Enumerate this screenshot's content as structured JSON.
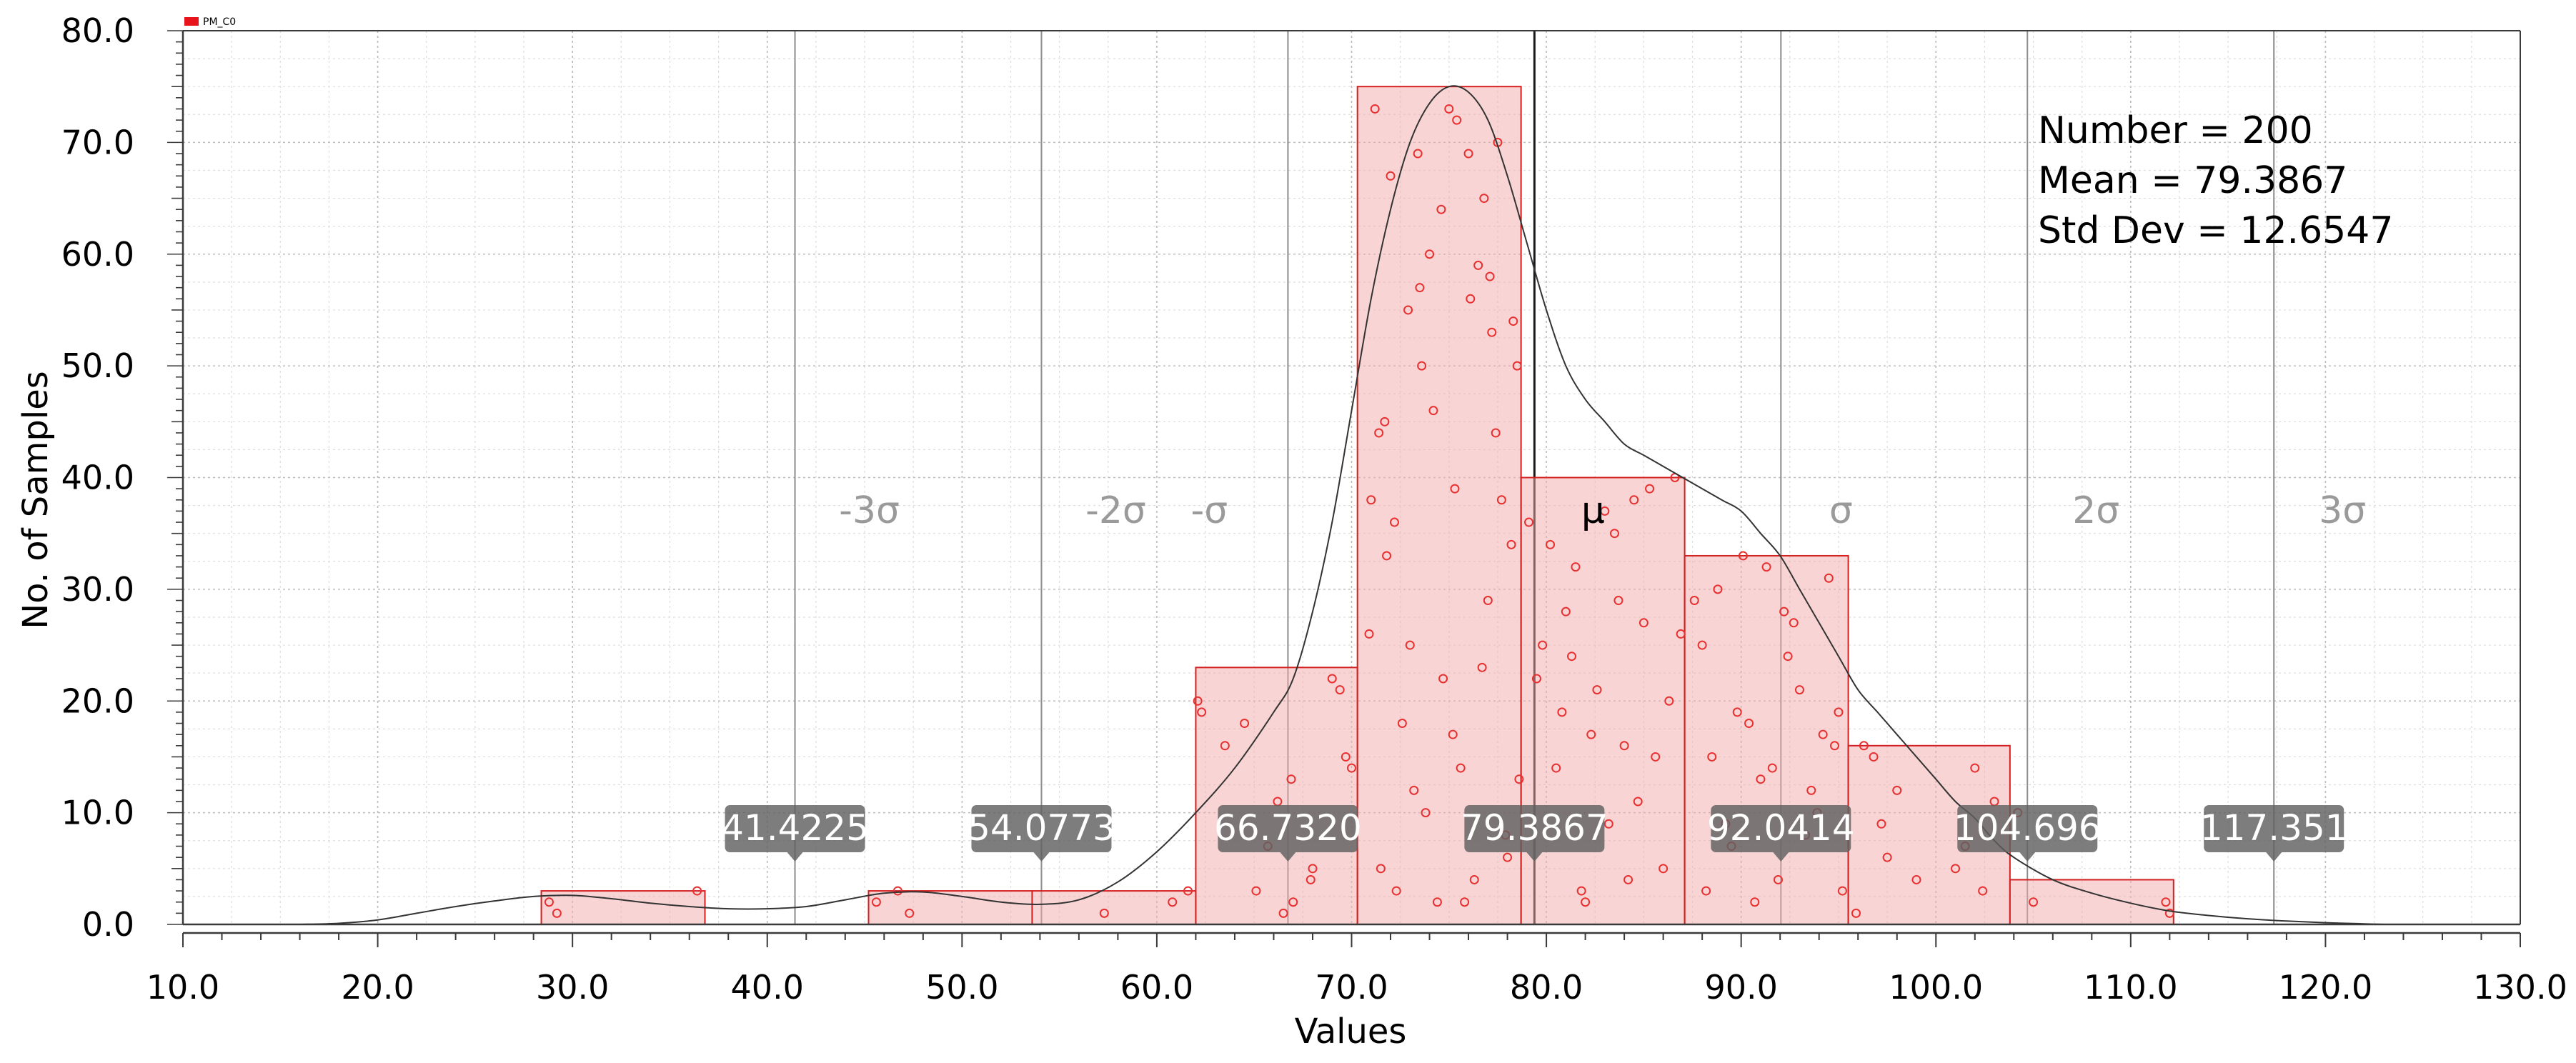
{
  "chart_data": {
    "type": "histogram",
    "legend": {
      "label": "PM_C0",
      "color": "#e8141b",
      "placement": "top-left"
    },
    "xlabel": "Values",
    "ylabel": "No. of Samples",
    "xlim": [
      10.0,
      130.0
    ],
    "ylim": [
      0.0,
      80.0
    ],
    "x_tick_labels": [
      "10.0",
      "20.0",
      "30.0",
      "40.0",
      "50.0",
      "60.0",
      "70.0",
      "80.0",
      "90.0",
      "100.0",
      "110.0",
      "120.0",
      "130.0"
    ],
    "y_tick_labels": [
      "0.0",
      "10.0",
      "20.0",
      "30.0",
      "40.0",
      "50.0",
      "60.0",
      "70.0",
      "80.0"
    ],
    "grid": true,
    "bins": [
      {
        "x0": 28.4,
        "x1": 36.8,
        "count": 3
      },
      {
        "x0": 45.2,
        "x1": 53.6,
        "count": 3
      },
      {
        "x0": 53.6,
        "x1": 62.0,
        "count": 3
      },
      {
        "x0": 62.0,
        "x1": 70.3,
        "count": 23
      },
      {
        "x0": 70.3,
        "x1": 78.7,
        "count": 75
      },
      {
        "x0": 78.7,
        "x1": 87.1,
        "count": 40
      },
      {
        "x0": 87.1,
        "x1": 95.5,
        "count": 33
      },
      {
        "x0": 95.5,
        "x1": 103.8,
        "count": 16
      },
      {
        "x0": 103.8,
        "x1": 112.2,
        "count": 4
      }
    ],
    "density_curve": [
      [
        16,
        0
      ],
      [
        18,
        0.1
      ],
      [
        20,
        0.4
      ],
      [
        22,
        1.0
      ],
      [
        24,
        1.6
      ],
      [
        26,
        2.1
      ],
      [
        28,
        2.5
      ],
      [
        30,
        2.6
      ],
      [
        32,
        2.3
      ],
      [
        34,
        1.9
      ],
      [
        36,
        1.6
      ],
      [
        38,
        1.4
      ],
      [
        40,
        1.4
      ],
      [
        42,
        1.6
      ],
      [
        44,
        2.2
      ],
      [
        46,
        2.8
      ],
      [
        48,
        2.9
      ],
      [
        50,
        2.5
      ],
      [
        52,
        2.0
      ],
      [
        54,
        1.8
      ],
      [
        56,
        2.2
      ],
      [
        58,
        3.8
      ],
      [
        60,
        6.5
      ],
      [
        62,
        10
      ],
      [
        64,
        14
      ],
      [
        66,
        19
      ],
      [
        67,
        22
      ],
      [
        68,
        28
      ],
      [
        69,
        36
      ],
      [
        70,
        46
      ],
      [
        71,
        56
      ],
      [
        72,
        64
      ],
      [
        73,
        70
      ],
      [
        74,
        73.5
      ],
      [
        75,
        75
      ],
      [
        76,
        74.5
      ],
      [
        77,
        72
      ],
      [
        78,
        67
      ],
      [
        79,
        61
      ],
      [
        80,
        55
      ],
      [
        81,
        50
      ],
      [
        82,
        47
      ],
      [
        83,
        45
      ],
      [
        84,
        43
      ],
      [
        85,
        42
      ],
      [
        86,
        41
      ],
      [
        87,
        40
      ],
      [
        88,
        39
      ],
      [
        89,
        38
      ],
      [
        90,
        37
      ],
      [
        91,
        35
      ],
      [
        92,
        33
      ],
      [
        93,
        30
      ],
      [
        94,
        27
      ],
      [
        95,
        24
      ],
      [
        96,
        21
      ],
      [
        97,
        19
      ],
      [
        98,
        17
      ],
      [
        99,
        15
      ],
      [
        100,
        13
      ],
      [
        101,
        11
      ],
      [
        102,
        9.5
      ],
      [
        103,
        7.5
      ],
      [
        104,
        6
      ],
      [
        106,
        4
      ],
      [
        108,
        2.8
      ],
      [
        110,
        1.9
      ],
      [
        112,
        1.2
      ],
      [
        114,
        0.8
      ],
      [
        116,
        0.5
      ],
      [
        118,
        0.3
      ],
      [
        120,
        0.15
      ],
      [
        122,
        0.05
      ],
      [
        123,
        0
      ]
    ],
    "samples": [
      [
        28.8,
        2
      ],
      [
        29.2,
        1
      ],
      [
        36.4,
        3
      ],
      [
        45.6,
        2
      ],
      [
        46.7,
        3
      ],
      [
        47.3,
        1
      ],
      [
        57.3,
        1
      ],
      [
        60.8,
        2
      ],
      [
        61.6,
        3
      ],
      [
        62.1,
        20
      ],
      [
        62.3,
        19
      ],
      [
        63.5,
        16
      ],
      [
        64.5,
        18
      ],
      [
        65.1,
        3
      ],
      [
        65.7,
        7
      ],
      [
        66.2,
        11
      ],
      [
        66.5,
        1
      ],
      [
        66.9,
        13
      ],
      [
        67.0,
        2
      ],
      [
        67.9,
        4
      ],
      [
        68.0,
        5
      ],
      [
        69.0,
        22
      ],
      [
        69.4,
        21
      ],
      [
        69.7,
        15
      ],
      [
        70.0,
        14
      ],
      [
        70.9,
        26
      ],
      [
        71.0,
        38
      ],
      [
        71.2,
        73
      ],
      [
        71.4,
        44
      ],
      [
        71.5,
        5
      ],
      [
        71.7,
        45
      ],
      [
        71.8,
        33
      ],
      [
        72.0,
        67
      ],
      [
        72.2,
        36
      ],
      [
        72.3,
        3
      ],
      [
        72.6,
        18
      ],
      [
        72.9,
        55
      ],
      [
        73.0,
        25
      ],
      [
        73.2,
        12
      ],
      [
        73.4,
        69
      ],
      [
        73.5,
        57
      ],
      [
        73.6,
        50
      ],
      [
        73.8,
        10
      ],
      [
        74.0,
        60
      ],
      [
        74.2,
        46
      ],
      [
        74.4,
        2
      ],
      [
        74.6,
        64
      ],
      [
        74.7,
        22
      ],
      [
        75.0,
        73
      ],
      [
        75.2,
        17
      ],
      [
        75.3,
        39
      ],
      [
        75.4,
        72
      ],
      [
        75.6,
        14
      ],
      [
        75.8,
        2
      ],
      [
        76.0,
        69
      ],
      [
        76.1,
        56
      ],
      [
        76.3,
        4
      ],
      [
        76.5,
        59
      ],
      [
        76.7,
        23
      ],
      [
        76.8,
        65
      ],
      [
        77.0,
        29
      ],
      [
        77.1,
        58
      ],
      [
        77.2,
        53
      ],
      [
        77.4,
        44
      ],
      [
        77.5,
        70
      ],
      [
        77.7,
        38
      ],
      [
        77.9,
        8
      ],
      [
        78.0,
        6
      ],
      [
        78.2,
        34
      ],
      [
        78.3,
        54
      ],
      [
        78.5,
        50
      ],
      [
        78.6,
        13
      ],
      [
        79.1,
        36
      ],
      [
        79.5,
        22
      ],
      [
        79.8,
        25
      ],
      [
        80.2,
        34
      ],
      [
        80.5,
        14
      ],
      [
        80.8,
        19
      ],
      [
        81.0,
        28
      ],
      [
        81.3,
        24
      ],
      [
        81.5,
        32
      ],
      [
        81.8,
        3
      ],
      [
        82.0,
        2
      ],
      [
        82.3,
        17
      ],
      [
        82.6,
        21
      ],
      [
        83.0,
        37
      ],
      [
        83.2,
        9
      ],
      [
        83.5,
        35
      ],
      [
        83.7,
        29
      ],
      [
        84.0,
        16
      ],
      [
        84.2,
        4
      ],
      [
        84.5,
        38
      ],
      [
        84.7,
        11
      ],
      [
        85.0,
        27
      ],
      [
        85.3,
        39
      ],
      [
        85.6,
        15
      ],
      [
        86.0,
        5
      ],
      [
        86.3,
        20
      ],
      [
        86.6,
        40
      ],
      [
        86.9,
        26
      ],
      [
        87.6,
        29
      ],
      [
        88.0,
        25
      ],
      [
        88.2,
        3
      ],
      [
        88.5,
        15
      ],
      [
        88.8,
        30
      ],
      [
        89.2,
        9
      ],
      [
        89.5,
        7
      ],
      [
        89.8,
        19
      ],
      [
        90.1,
        33
      ],
      [
        90.4,
        18
      ],
      [
        90.7,
        2
      ],
      [
        91.0,
        13
      ],
      [
        91.3,
        32
      ],
      [
        91.6,
        14
      ],
      [
        91.9,
        4
      ],
      [
        92.2,
        28
      ],
      [
        92.4,
        24
      ],
      [
        92.7,
        27
      ],
      [
        93.0,
        21
      ],
      [
        93.3,
        8
      ],
      [
        93.6,
        12
      ],
      [
        93.9,
        10
      ],
      [
        94.2,
        17
      ],
      [
        94.5,
        31
      ],
      [
        94.8,
        16
      ],
      [
        95.0,
        19
      ],
      [
        95.2,
        3
      ],
      [
        95.9,
        1
      ],
      [
        96.3,
        16
      ],
      [
        96.8,
        15
      ],
      [
        97.2,
        9
      ],
      [
        97.5,
        6
      ],
      [
        98.0,
        12
      ],
      [
        99.0,
        4
      ],
      [
        101.0,
        5
      ],
      [
        101.5,
        7
      ],
      [
        102.0,
        14
      ],
      [
        102.4,
        3
      ],
      [
        103.0,
        11
      ],
      [
        104.2,
        10
      ],
      [
        105.0,
        2
      ],
      [
        111.8,
        2
      ],
      [
        112.0,
        1
      ]
    ],
    "sigma_lines": [
      {
        "label": "-3σ",
        "x": 41.4225,
        "value": "41.4225"
      },
      {
        "label": "-2σ",
        "x": 54.0773,
        "value": "54.0773"
      },
      {
        "label": "-σ",
        "x": 66.732,
        "value": "66.7320"
      },
      {
        "label": "μ",
        "x": 79.3867,
        "value": "79.3867"
      },
      {
        "label": "σ",
        "x": 92.0414,
        "value": "92.0414"
      },
      {
        "label": "2σ",
        "x": 104.696,
        "value": "104.696"
      },
      {
        "label": "3σ",
        "x": 117.351,
        "value": "117.351"
      }
    ],
    "stats": [
      "Number = 200",
      "Mean = 79.3867",
      "Std Dev = 12.6547"
    ]
  }
}
